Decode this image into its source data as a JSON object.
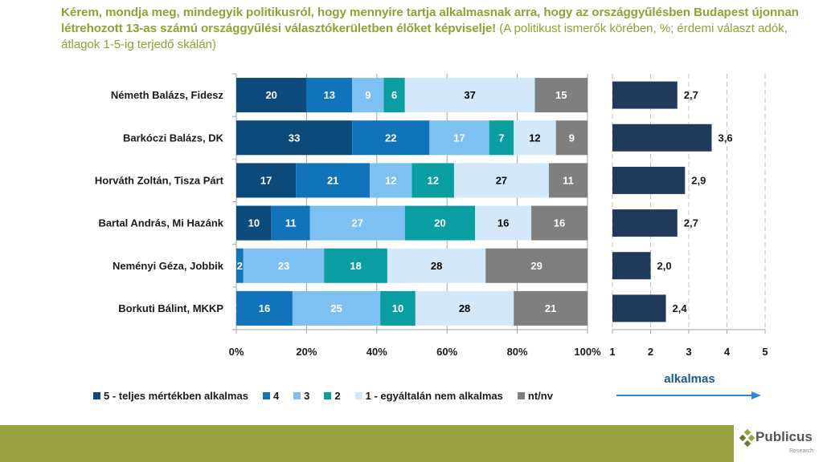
{
  "title": {
    "bold": "Kérem, mondja meg, mindegyik politikusról, hogy mennyire tartja alkalmasnak arra, hogy az országgyűlésben Budapest újonnan létrehozott 13-as számú országgyűlési választókerületben élőket képviselje!",
    "normal": " (A politikust ismerők körében, %; érdemi választ adók, átlagok 1-5-ig terjedő skálán)"
  },
  "chart_data": [
    {
      "type": "bar",
      "orientation": "horizontal",
      "stacked": true,
      "title": "",
      "categories": [
        "Németh Balázs, Fidesz",
        "Barkóczi Balázs, DK",
        "Horváth Zoltán, Tisza Párt",
        "Bartal András, Mi Hazánk",
        "Neményi Géza, Jobbik",
        "Borkuti Bálint, MKKP"
      ],
      "series": [
        {
          "name": "5 - teljes mértékben alkalmas",
          "color": "#0B4A7A",
          "label_color": "#ffffff",
          "values": [
            20,
            33,
            17,
            10,
            0,
            0
          ]
        },
        {
          "name": "4",
          "color": "#1173B9",
          "label_color": "#ffffff",
          "values": [
            13,
            22,
            21,
            11,
            2,
            16
          ]
        },
        {
          "name": "3",
          "color": "#7CC1F2",
          "label_color": "#ffffff",
          "values": [
            9,
            17,
            12,
            27,
            23,
            25
          ]
        },
        {
          "name": "2",
          "color": "#0A9EA3",
          "label_color": "#ffffff",
          "values": [
            6,
            7,
            12,
            20,
            18,
            10
          ]
        },
        {
          "name": "1 - egyáltalán nem alkalmas",
          "color": "#D3E9FA",
          "label_color": "#000000",
          "values": [
            37,
            12,
            27,
            16,
            28,
            28
          ]
        },
        {
          "name": "nt/nv",
          "color": "#7F7F7F",
          "label_color": "#ffffff",
          "values": [
            15,
            9,
            11,
            16,
            29,
            21
          ]
        }
      ],
      "xlim": [
        0,
        100
      ],
      "xticks": [
        "0%",
        "20%",
        "40%",
        "60%",
        "80%",
        "100%"
      ],
      "grid": true,
      "legend": "bottom"
    },
    {
      "type": "bar",
      "orientation": "horizontal",
      "title": "",
      "categories": [
        "Németh Balázs, Fidesz",
        "Barkóczi Balázs, DK",
        "Horváth Zoltán, Tisza Párt",
        "Bartal András, Mi Hazánk",
        "Neményi Géza, Jobbik",
        "Borkuti Bálint, MKKP"
      ],
      "values": [
        2.7,
        3.6,
        2.9,
        2.7,
        2.0,
        2.4
      ],
      "value_labels": [
        "2,7",
        "3,6",
        "2,9",
        "2,7",
        "2,0",
        "2,4"
      ],
      "color": "#1F3A5A",
      "xlim": [
        1,
        5
      ],
      "xticks": [
        "1",
        "2",
        "3",
        "4",
        "5"
      ],
      "grid": true,
      "grid_style": "dashed",
      "annotation": "alkalmas"
    }
  ],
  "legend": [
    {
      "label": "5 - teljes mértékben alkalmas",
      "color": "#0B4A7A"
    },
    {
      "label": "4",
      "color": "#1173B9"
    },
    {
      "label": "3",
      "color": "#7CC1F2"
    },
    {
      "label": "2",
      "color": "#0A9EA3"
    },
    {
      "label": "1 - egyáltalán nem alkalmas",
      "color": "#D3E9FA"
    },
    {
      "label": "nt/nv",
      "color": "#7F7F7F"
    }
  ],
  "arrow_label": "alkalmas",
  "logo": {
    "name": "Publicus",
    "sub": "Research"
  }
}
